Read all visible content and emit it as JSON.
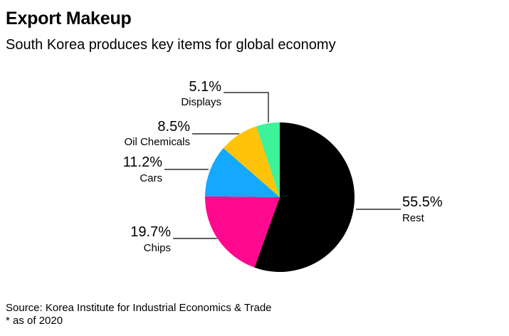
{
  "header": {
    "title": "Export Makeup",
    "subtitle": "South Korea produces key items for global economy"
  },
  "footer": {
    "source": "Source: Korea Institute for Industrial Economics & Trade",
    "note": "* as of 2020"
  },
  "colors": {
    "rest": "#000000",
    "chips": "#ff0a8f",
    "cars": "#14a8ff",
    "oil_chemicals": "#ffc40a",
    "displays": "#3ef29a",
    "leader": "#000000"
  },
  "chart_data": {
    "type": "pie",
    "title": "Export Makeup",
    "subtitle": "South Korea produces key items for global economy",
    "unit": "%",
    "slices": [
      {
        "key": "rest",
        "label": "Rest",
        "value": 55.5,
        "value_label": "55.5%",
        "color": "#000000"
      },
      {
        "key": "chips",
        "label": "Chips",
        "value": 19.7,
        "value_label": "19.7%",
        "color": "#ff0a8f"
      },
      {
        "key": "cars",
        "label": "Cars",
        "value": 11.2,
        "value_label": "11.2%",
        "color": "#14a8ff"
      },
      {
        "key": "oil_chemicals",
        "label": "Oil Chemicals",
        "value": 8.5,
        "value_label": "8.5%",
        "color": "#ffc40a"
      },
      {
        "key": "displays",
        "label": "Displays",
        "value": 5.1,
        "value_label": "5.1%",
        "color": "#3ef29a"
      }
    ],
    "start": "12 o'clock",
    "direction": "clockwise",
    "labels": "outside with leader lines"
  }
}
